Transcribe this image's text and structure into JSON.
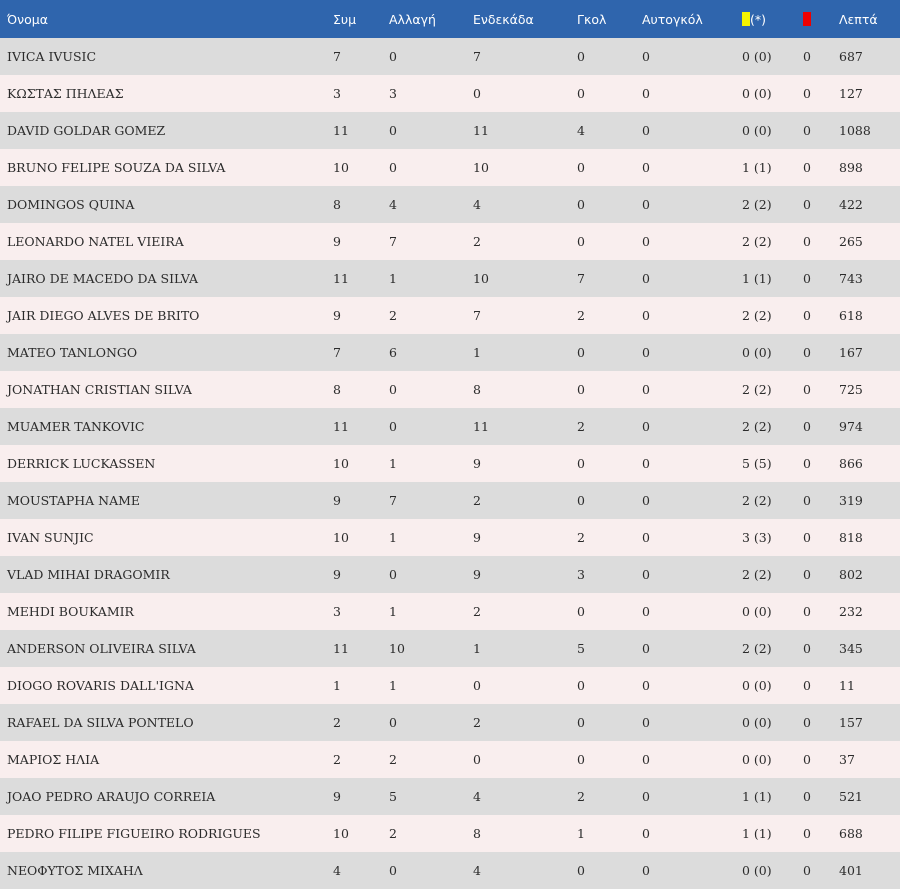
{
  "headers": {
    "name": "Όνομα",
    "apps": "Συμ",
    "sub": "Αλλαγή",
    "starting": "Ενδεκάδα",
    "goals": "Γκολ",
    "own_goals": "Αυτογκόλ",
    "yellow_suffix": "(*)",
    "minutes": "Λεπτά"
  },
  "icons": {
    "yellow_card": "yellow-card-icon",
    "red_card": "red-card-icon"
  },
  "colors": {
    "header_bg": "#2f65ad",
    "row_odd": "#dcdcdc",
    "row_even": "#f9eeee",
    "yellow": "#f4f400",
    "red": "#ee0000"
  },
  "players": [
    {
      "name": "IVICA IVUSIC",
      "apps": "7",
      "sub": "0",
      "starting": "7",
      "goals": "0",
      "own_goals": "0",
      "yellow": "0 (0)",
      "red": "0",
      "minutes": "687"
    },
    {
      "name": "ΚΩΣΤΑΣ ΠΗΛΕΑΣ",
      "apps": "3",
      "sub": "3",
      "starting": "0",
      "goals": "0",
      "own_goals": "0",
      "yellow": "0 (0)",
      "red": "0",
      "minutes": "127"
    },
    {
      "name": "DAVID GOLDAR GOMEZ",
      "apps": "11",
      "sub": "0",
      "starting": "11",
      "goals": "4",
      "own_goals": "0",
      "yellow": "0 (0)",
      "red": "0",
      "minutes": "1088"
    },
    {
      "name": "BRUNO FELIPE SOUZA DA SILVA",
      "apps": "10",
      "sub": "0",
      "starting": "10",
      "goals": "0",
      "own_goals": "0",
      "yellow": "1 (1)",
      "red": "0",
      "minutes": "898"
    },
    {
      "name": "DOMINGOS QUINA",
      "apps": "8",
      "sub": "4",
      "starting": "4",
      "goals": "0",
      "own_goals": "0",
      "yellow": "2 (2)",
      "red": "0",
      "minutes": "422"
    },
    {
      "name": "LEONARDO NATEL VIEIRA",
      "apps": "9",
      "sub": "7",
      "starting": "2",
      "goals": "0",
      "own_goals": "0",
      "yellow": "2 (2)",
      "red": "0",
      "minutes": "265"
    },
    {
      "name": "JAIRO DE MACEDO DA SILVA",
      "apps": "11",
      "sub": "1",
      "starting": "10",
      "goals": "7",
      "own_goals": "0",
      "yellow": "1 (1)",
      "red": "0",
      "minutes": "743"
    },
    {
      "name": "JAIR DIEGO ALVES DE BRITO",
      "apps": "9",
      "sub": "2",
      "starting": "7",
      "goals": "2",
      "own_goals": "0",
      "yellow": "2 (2)",
      "red": "0",
      "minutes": "618"
    },
    {
      "name": "MATEO TANLONGO",
      "apps": "7",
      "sub": "6",
      "starting": "1",
      "goals": "0",
      "own_goals": "0",
      "yellow": "0 (0)",
      "red": "0",
      "minutes": "167"
    },
    {
      "name": "JONATHAN CRISTIAN SILVA",
      "apps": "8",
      "sub": "0",
      "starting": "8",
      "goals": "0",
      "own_goals": "0",
      "yellow": "2 (2)",
      "red": "0",
      "minutes": "725"
    },
    {
      "name": "MUAMER TANKOVIC",
      "apps": "11",
      "sub": "0",
      "starting": "11",
      "goals": "2",
      "own_goals": "0",
      "yellow": "2 (2)",
      "red": "0",
      "minutes": "974"
    },
    {
      "name": "DERRICK LUCKASSEN",
      "apps": "10",
      "sub": "1",
      "starting": "9",
      "goals": "0",
      "own_goals": "0",
      "yellow": "5 (5)",
      "red": "0",
      "minutes": "866"
    },
    {
      "name": "MOUSTAPHA NAME",
      "apps": "9",
      "sub": "7",
      "starting": "2",
      "goals": "0",
      "own_goals": "0",
      "yellow": "2 (2)",
      "red": "0",
      "minutes": "319"
    },
    {
      "name": "IVAN SUNJIC",
      "apps": "10",
      "sub": "1",
      "starting": "9",
      "goals": "2",
      "own_goals": "0",
      "yellow": "3 (3)",
      "red": "0",
      "minutes": "818"
    },
    {
      "name": "VLAD MIHAI DRAGOMIR",
      "apps": "9",
      "sub": "0",
      "starting": "9",
      "goals": "3",
      "own_goals": "0",
      "yellow": "2 (2)",
      "red": "0",
      "minutes": "802"
    },
    {
      "name": "MEHDI BOUKAMIR",
      "apps": "3",
      "sub": "1",
      "starting": "2",
      "goals": "0",
      "own_goals": "0",
      "yellow": "0 (0)",
      "red": "0",
      "minutes": "232"
    },
    {
      "name": "ANDERSON OLIVEIRA SILVA",
      "apps": "11",
      "sub": "10",
      "starting": "1",
      "goals": "5",
      "own_goals": "0",
      "yellow": "2 (2)",
      "red": "0",
      "minutes": "345"
    },
    {
      "name": "DIOGO ROVARIS DALL'IGNA",
      "apps": "1",
      "sub": "1",
      "starting": "0",
      "goals": "0",
      "own_goals": "0",
      "yellow": "0 (0)",
      "red": "0",
      "minutes": "11"
    },
    {
      "name": "RAFAEL DA SILVA PONTELO",
      "apps": "2",
      "sub": "0",
      "starting": "2",
      "goals": "0",
      "own_goals": "0",
      "yellow": "0 (0)",
      "red": "0",
      "minutes": "157"
    },
    {
      "name": "ΜΑΡΙΟΣ ΗΛΙΑ",
      "apps": "2",
      "sub": "2",
      "starting": "0",
      "goals": "0",
      "own_goals": "0",
      "yellow": "0 (0)",
      "red": "0",
      "minutes": "37"
    },
    {
      "name": "JOAO PEDRO ARAUJO CORREIA",
      "apps": "9",
      "sub": "5",
      "starting": "4",
      "goals": "2",
      "own_goals": "0",
      "yellow": "1 (1)",
      "red": "0",
      "minutes": "521"
    },
    {
      "name": "PEDRO FILIPE FIGUEIRO RODRIGUES",
      "apps": "10",
      "sub": "2",
      "starting": "8",
      "goals": "1",
      "own_goals": "0",
      "yellow": "1 (1)",
      "red": "0",
      "minutes": "688"
    },
    {
      "name": "ΝΕΟΦΥΤΟΣ ΜΙΧΑΗΛ",
      "apps": "4",
      "sub": "0",
      "starting": "4",
      "goals": "0",
      "own_goals": "0",
      "yellow": "0 (0)",
      "red": "0",
      "minutes": "401"
    }
  ]
}
